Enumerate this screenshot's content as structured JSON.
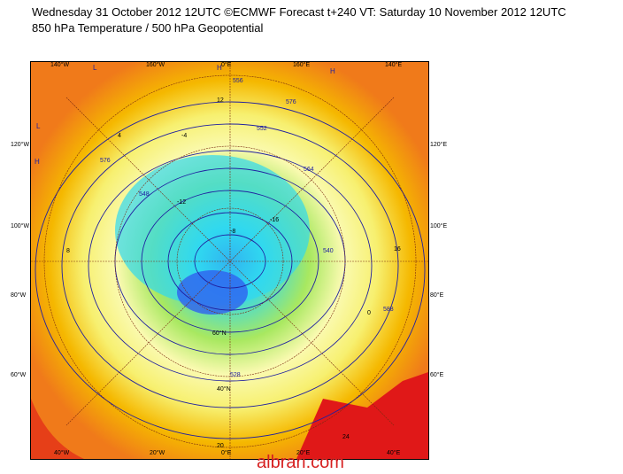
{
  "header": {
    "line1": "Wednesday 31 October 2012 12UTC ©ECMWF Forecast t+240 VT: Saturday 10 November 2012 12UTC",
    "line2": "850 hPa Temperature / 500 hPa Geopotential"
  },
  "map": {
    "lon_labels_top": [
      "140°W",
      "160°W",
      "0°E",
      "160°E",
      "140°E"
    ],
    "lon_labels_bottom": [
      "40°W",
      "20°W",
      "0°E",
      "20°E",
      "40°E"
    ],
    "lon_labels_left": [
      "120°W",
      "100°W",
      "80°W",
      "60°W"
    ],
    "lon_labels_right": [
      "120°E",
      "100°E",
      "80°E",
      "60°E"
    ],
    "lat_labels": [
      "60°N",
      "40°N"
    ],
    "geopotential_labels": [
      "556",
      "576",
      "552",
      "564",
      "548",
      "528",
      "540",
      "576",
      "588"
    ],
    "temperature_labels": [
      "-16",
      "-12",
      "-8",
      "-4",
      "0",
      "4",
      "8",
      "12",
      "16",
      "20",
      "24"
    ],
    "pressure_marks": [
      "H",
      "L"
    ],
    "colors": {
      "warm": "#f07a1a",
      "hot": "#e01818",
      "mild": "#f5b800",
      "cool_yellow": "#f7f070",
      "pale": "#fafab0",
      "cyan": "#30d8f0",
      "blue": "#3060f0",
      "green": "#a8e860",
      "contour": "#2020a0",
      "coast": "#7a2a10"
    }
  },
  "watermark": "albrari.com"
}
